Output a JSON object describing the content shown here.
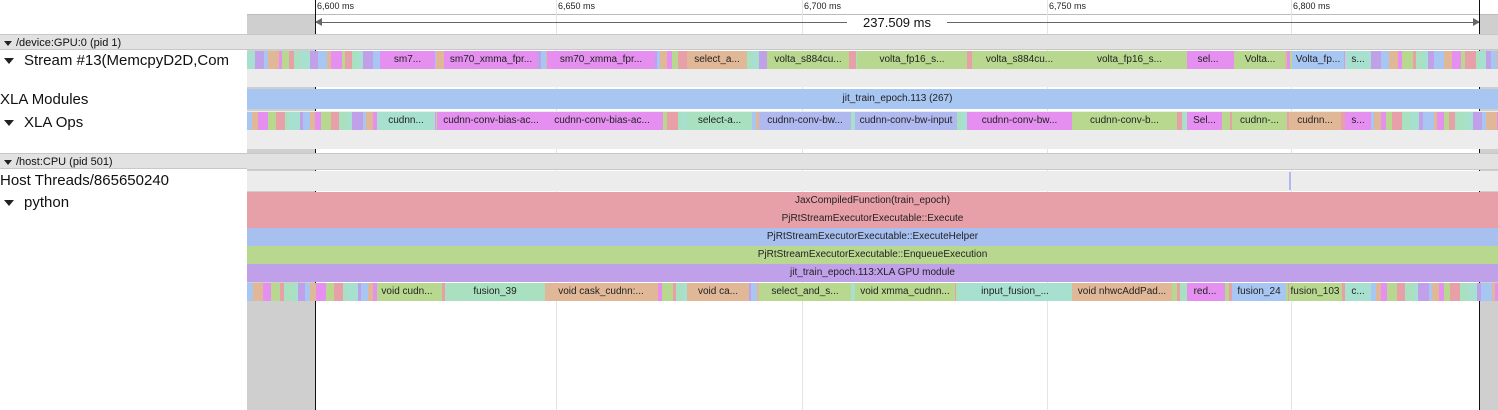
{
  "ruler": {
    "ticks": [
      "6,600 ms",
      "6,650 ms",
      "6,700 ms",
      "6,750 ms",
      "6,800 ms"
    ],
    "span_label": "237.509 ms"
  },
  "processes": [
    {
      "label": "/device:GPU:0 (pid 1)"
    },
    {
      "label": "/host:CPU (pid 501)"
    }
  ],
  "tracks": {
    "stream": "Stream #13(MemcpyD2D,Com",
    "xla_modules": "XLA Modules",
    "xla_ops": "XLA Ops",
    "host_threads": "Host Threads/865650240",
    "python": "python"
  },
  "stream_slices": [
    "sm7...",
    "sm70_xmma_fpr...",
    "sm70_xmma_fpr...",
    "select_a...",
    "volta_s884cu...",
    "volta_fp16_s...",
    "volta_s884cu...",
    "volta_fp16_s...",
    "sel...",
    "Volta...",
    "Volta_fp...",
    "s..."
  ],
  "module_slice": "jit_train_epoch.113 (267)",
  "op_slices": [
    "cudnn...",
    "cudnn-conv-bias-ac...",
    "cudnn-conv-bias-ac...",
    "select-a...",
    "cudnn-conv-bw...",
    "cudnn-conv-bw-input",
    "cudnn-conv-bw...",
    "cudnn-conv-b...",
    "Sel...",
    "cudnn-...",
    "cudnn...",
    "s..."
  ],
  "python_stack": [
    "JaxCompiledFunction(train_epoch)",
    "PjRtStreamExecutorExecutable::Execute",
    "PjRtStreamExecutorExecutable::ExecuteHelper",
    "PjRtStreamExecutorExecutable::EnqueueExecution",
    "jit_train_epoch.113:XLA GPU module"
  ],
  "python_leaf_slices": [
    "void cudn...",
    "fusion_39",
    "void cask_cudnn:...",
    "void ca...",
    "select_and_s...",
    "void xmma_cudnn...",
    "input_fusion_...",
    "void nhwcAddPad...",
    "red...",
    "fusion_24",
    "fusion_103",
    "c..."
  ],
  "colors": {
    "module": "#a8c6f2",
    "stack": [
      "#e8a0a8",
      "#e8a0a8",
      "#a8c0f0",
      "#b8d890",
      "#c0a0e8"
    ],
    "stream": [
      "#e590f0",
      "#e590f0",
      "#e590f0",
      "#e0b898",
      "#b8d890",
      "#b8d890",
      "#b8d890",
      "#b8d890",
      "#e590f0",
      "#b8d890",
      "#a8c6f2",
      "#a8e0d0"
    ],
    "ops": [
      "#a8e0d0",
      "#e590f0",
      "#e590f0",
      "#a8e0c0",
      "#b0b8f0",
      "#b0b8f0",
      "#e590f0",
      "#b8d890",
      "#e590f0",
      "#b8d890",
      "#e0b898",
      "#e590f0"
    ],
    "leaf": [
      "#b8d890",
      "#a8e0c0",
      "#e0b898",
      "#e0b898",
      "#b8d890",
      "#b8d890",
      "#a8e0d0",
      "#e0b898",
      "#e590f0",
      "#a8c6f2",
      "#b8d890",
      "#a8e0d0"
    ]
  }
}
